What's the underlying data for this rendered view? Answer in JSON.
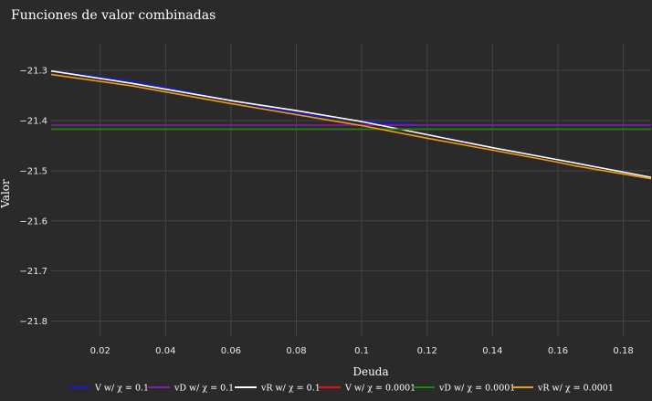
{
  "chart_data": {
    "type": "line",
    "title": "Funciones de valor combinadas",
    "xlabel": "Deuda",
    "ylabel": "Valor",
    "xlim": [
      0.005,
      0.1885
    ],
    "ylim": [
      -21.83,
      -21.245
    ],
    "xticks": [
      0.02,
      0.04,
      0.06,
      0.08,
      0.1,
      0.12,
      0.14,
      0.16,
      0.18
    ],
    "xtick_labels": [
      "0.02",
      "0.04",
      "0.06",
      "0.08",
      "0.1",
      "0.12",
      "0.14",
      "0.16",
      "0.18"
    ],
    "yticks": [
      -21.3,
      -21.4,
      -21.5,
      -21.6,
      -21.7,
      -21.8
    ],
    "ytick_labels": [
      "−21.3",
      "−21.4",
      "−21.5",
      "−21.6",
      "−21.7",
      "−21.8"
    ],
    "grid": true,
    "legend_position": "bottom",
    "series": [
      {
        "name": "V w/ χ = 0.1",
        "color": "#1a1ad6",
        "x": [
          0.005,
          0.03,
          0.06,
          0.08,
          0.1,
          0.11,
          0.12,
          0.1885
        ],
        "y": [
          -21.301,
          -21.321,
          -21.36,
          -21.385,
          -21.401,
          -21.406,
          -21.409,
          -21.409
        ]
      },
      {
        "name": "vD w/ χ = 0.1",
        "color": "#8a1ab0",
        "x": [
          0.005,
          0.1885
        ],
        "y": [
          -21.409,
          -21.409
        ]
      },
      {
        "name": "vR w/ χ = 0.1",
        "color": "#ffffff",
        "x": [
          0.005,
          0.03,
          0.06,
          0.08,
          0.1,
          0.12,
          0.14,
          0.16,
          0.1885
        ],
        "y": [
          -21.301,
          -21.326,
          -21.36,
          -21.38,
          -21.402,
          -21.428,
          -21.454,
          -21.478,
          -21.513
        ]
      },
      {
        "name": "V w/ χ = 0.0001",
        "color": "#e01010",
        "x": [
          0.005,
          0.1885
        ],
        "y": [
          -21.417,
          -21.417
        ]
      },
      {
        "name": "vD w/ χ = 0.0001",
        "color": "#138a13",
        "x": [
          0.005,
          0.1885
        ],
        "y": [
          -21.417,
          -21.417
        ]
      },
      {
        "name": "vR w/ χ = 0.0001",
        "color": "#f29a1a",
        "x": [
          0.005,
          0.03,
          0.06,
          0.08,
          0.1,
          0.12,
          0.14,
          0.16,
          0.165,
          0.1885
        ],
        "y": [
          -21.308,
          -21.331,
          -21.366,
          -21.388,
          -21.41,
          -21.435,
          -21.459,
          -21.483,
          -21.49,
          -21.516
        ]
      }
    ]
  }
}
